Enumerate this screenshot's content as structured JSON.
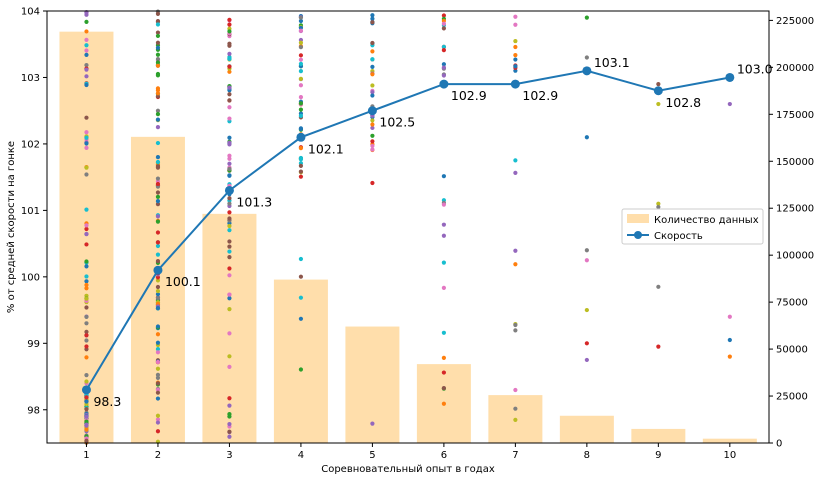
{
  "chart_data": {
    "type": "bar+line+scatter",
    "categories": [
      1,
      2,
      3,
      4,
      5,
      6,
      7,
      8,
      9,
      10
    ],
    "xlabel": "Соревновательный опыт в годах",
    "ylabel": "% от средней скорости на гонке",
    "ylim": [
      97.5,
      104
    ],
    "y2lim": [
      0,
      230000
    ],
    "yticks": [
      98,
      99,
      100,
      101,
      102,
      103,
      104
    ],
    "y2ticks": [
      0,
      25000,
      50000,
      75000,
      100000,
      125000,
      150000,
      175000,
      200000,
      225000
    ],
    "grid": false,
    "legend_position": "center-right",
    "series": [
      {
        "name": "Количество данных",
        "kind": "bar",
        "axis": "right",
        "color": "#ffdeab",
        "values": [
          219000,
          163000,
          122000,
          87000,
          62000,
          42000,
          25500,
          14500,
          7500,
          2300
        ]
      },
      {
        "name": "Скорость",
        "kind": "line",
        "axis": "left",
        "color": "#1f77b4",
        "values": [
          98.3,
          100.1,
          101.3,
          102.1,
          102.5,
          102.9,
          102.9,
          103.1,
          102.8,
          103.0
        ],
        "labels": [
          "98.3",
          "100.1",
          "101.3",
          "102.1",
          "102.5",
          "102.9",
          "102.9",
          "103.1",
          "102.8",
          "103.0"
        ]
      }
    ],
    "scatter_colors": [
      "#1f77b4",
      "#ff7f0e",
      "#2ca02c",
      "#d62728",
      "#9467bd",
      "#8c564b",
      "#e377c2",
      "#7f7f7f",
      "#bcbd22",
      "#17becf"
    ],
    "scatter_points": {
      "8": [
        103.9,
        103.3,
        102.1,
        100.4,
        100.25,
        99.5,
        99.0,
        98.75
      ],
      "9": [
        102.9,
        102.6,
        101.1,
        101.05,
        99.85,
        98.95
      ],
      "10": [
        102.6,
        99.4,
        99.05,
        98.8
      ]
    }
  }
}
